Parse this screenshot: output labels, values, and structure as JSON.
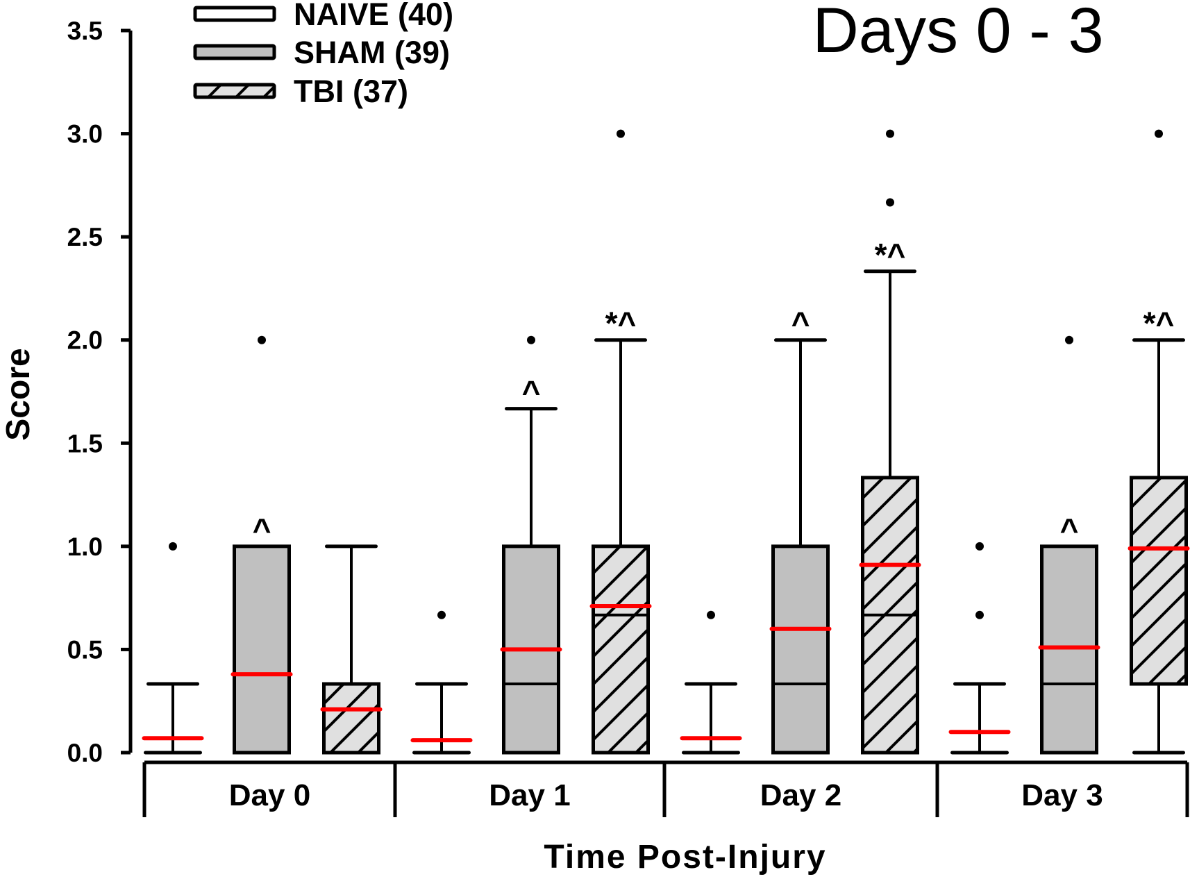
{
  "chart_data": {
    "type": "boxplot",
    "title": "Days 0 - 3",
    "xlabel": "Time Post-Injury",
    "ylabel": "Score",
    "ylim": [
      0,
      3.5
    ],
    "yticks": [
      "0.0",
      "0.5",
      "1.0",
      "1.5",
      "2.0",
      "2.5",
      "3.0",
      "3.5"
    ],
    "categories": [
      "Day 0",
      "Day 1",
      "Day 2",
      "Day 3"
    ],
    "legend_position": "top-left",
    "colors": {
      "naive": "#ffffff",
      "sham": "#c0c0c0",
      "tbi": "#e0e0e0",
      "mean": "#ff0000"
    },
    "series": [
      {
        "name": "NAIVE (40)",
        "fill": "naive",
        "hatch": false,
        "boxes": [
          {
            "min": 0,
            "q1": 0,
            "median": 0,
            "q3": 0,
            "max": 0.333,
            "mean": 0.07,
            "outliers": [
              1.0
            ],
            "annotation": ""
          },
          {
            "min": 0,
            "q1": 0,
            "median": 0,
            "q3": 0,
            "max": 0.333,
            "mean": 0.06,
            "outliers": [
              0.667
            ],
            "annotation": ""
          },
          {
            "min": 0,
            "q1": 0,
            "median": 0,
            "q3": 0,
            "max": 0.333,
            "mean": 0.07,
            "outliers": [
              0.667
            ],
            "annotation": ""
          },
          {
            "min": 0,
            "q1": 0,
            "median": 0,
            "q3": 0,
            "max": 0.333,
            "mean": 0.1,
            "outliers": [
              0.667,
              1.0
            ],
            "annotation": ""
          }
        ]
      },
      {
        "name": "SHAM (39)",
        "fill": "sham",
        "hatch": false,
        "boxes": [
          {
            "min": 0,
            "q1": 0,
            "median": 0,
            "q3": 1.0,
            "max": 1.0,
            "mean": 0.38,
            "outliers": [
              2.0
            ],
            "annotation": "^"
          },
          {
            "min": 0,
            "q1": 0,
            "median": 0.333,
            "q3": 1.0,
            "max": 1.667,
            "mean": 0.5,
            "outliers": [
              2.0
            ],
            "annotation": "^"
          },
          {
            "min": 0,
            "q1": 0,
            "median": 0.333,
            "q3": 1.0,
            "max": 2.0,
            "mean": 0.6,
            "outliers": [],
            "annotation": "^"
          },
          {
            "min": 0,
            "q1": 0,
            "median": 0.333,
            "q3": 1.0,
            "max": 1.0,
            "mean": 0.51,
            "outliers": [
              2.0
            ],
            "annotation": "^"
          }
        ]
      },
      {
        "name": "TBI (37)",
        "fill": "tbi",
        "hatch": true,
        "boxes": [
          {
            "min": 0,
            "q1": 0,
            "median": 0,
            "q3": 0.333,
            "max": 1.0,
            "mean": 0.21,
            "outliers": [],
            "annotation": ""
          },
          {
            "min": 0,
            "q1": 0,
            "median": 0.667,
            "q3": 1.0,
            "max": 2.0,
            "mean": 0.71,
            "outliers": [
              3.0
            ],
            "annotation": "*^"
          },
          {
            "min": 0,
            "q1": 0,
            "median": 0.667,
            "q3": 1.333,
            "max": 2.333,
            "mean": 0.91,
            "outliers": [
              2.667,
              3.0
            ],
            "annotation": "*^"
          },
          {
            "min": 0,
            "q1": 0.333,
            "median": 0.333,
            "q3": 1.333,
            "max": 2.0,
            "mean": 0.99,
            "outliers": [
              3.0
            ],
            "annotation": "*^"
          }
        ]
      }
    ]
  }
}
